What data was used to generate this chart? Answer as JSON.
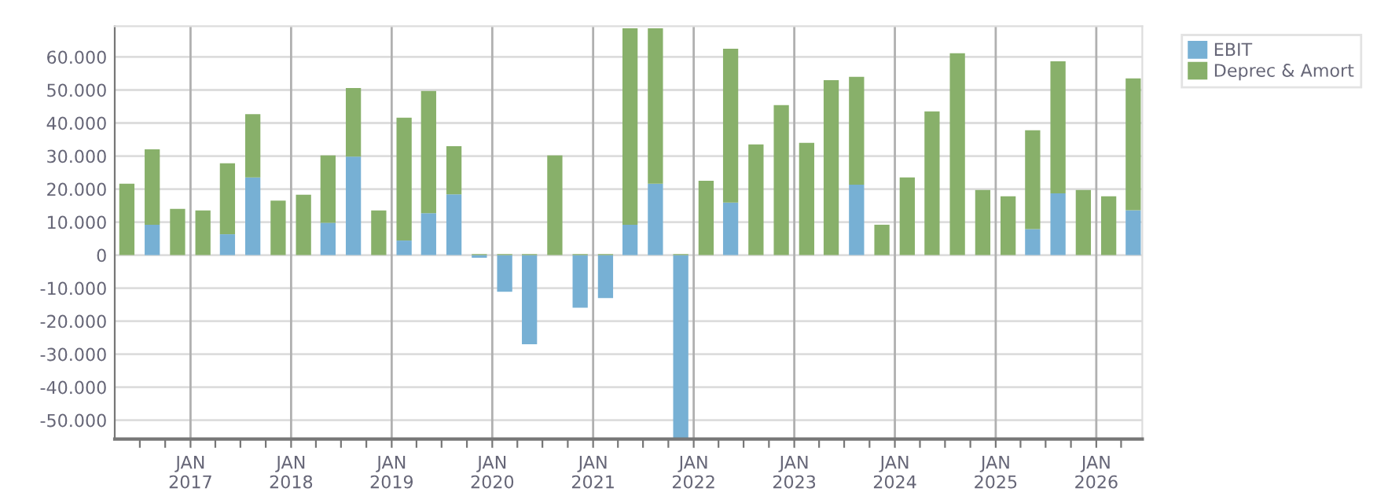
{
  "chart_data": {
    "type": "bar",
    "stacked": true,
    "x": [
      "2016-05-15",
      "2016-08-15",
      "2016-11-15",
      "2017-02-15",
      "2017-05-15",
      "2017-08-15",
      "2017-11-15",
      "2018-02-15",
      "2018-05-15",
      "2018-08-15",
      "2018-11-15",
      "2019-02-15",
      "2019-05-15",
      "2019-08-15",
      "2019-11-15",
      "2020-02-15",
      "2020-05-15",
      "2020-08-15",
      "2020-11-15",
      "2021-02-15",
      "2021-05-15",
      "2021-08-15",
      "2021-11-15",
      "2022-02-15",
      "2022-05-15",
      "2022-08-15",
      "2022-11-15",
      "2023-02-15",
      "2023-05-15",
      "2023-08-15",
      "2023-11-15",
      "2024-02-15",
      "2024-05-15",
      "2024-08-15",
      "2024-11-15",
      "2025-02-15",
      "2025-05-15",
      "2025-08-15",
      "2025-11-15",
      "2026-02-15",
      "2026-05-15"
    ],
    "series": [
      {
        "name": "EBIT",
        "color": "#77b0d4",
        "values": [
          0,
          9200,
          0,
          0,
          6300,
          23500,
          0,
          0,
          9800,
          29800,
          0,
          4400,
          12700,
          18400,
          -800,
          -11100,
          -27000,
          0,
          -15900,
          -13000,
          9200,
          21600,
          -55700,
          0,
          15900,
          0,
          0,
          0,
          0,
          21300,
          0,
          0,
          0,
          0,
          0,
          0,
          7900,
          18700,
          0,
          0,
          13600
        ]
      },
      {
        "name": "Deprec & Amort",
        "color": "#88b06a",
        "values": [
          21600,
          22800,
          14000,
          13500,
          21500,
          19200,
          16500,
          18300,
          20400,
          20800,
          13500,
          37200,
          37000,
          14600,
          300,
          300,
          300,
          30200,
          300,
          300,
          59500,
          47100,
          300,
          22500,
          46600,
          33500,
          45400,
          34000,
          53000,
          32700,
          9200,
          23500,
          43500,
          61100,
          19700,
          17800,
          29900,
          40000,
          19700,
          17800,
          39900
        ]
      }
    ],
    "xlim": [
      "2016-04-01",
      "2026-06-17"
    ],
    "xticks": [
      {
        "value": "2016-07-01",
        "label": null
      },
      {
        "value": "2016-10-01",
        "label": null
      },
      {
        "value": "2017-01-01",
        "label": "JAN\n2017"
      },
      {
        "value": "2017-04-01",
        "label": null
      },
      {
        "value": "2017-07-01",
        "label": null
      },
      {
        "value": "2017-10-01",
        "label": null
      },
      {
        "value": "2018-01-01",
        "label": "JAN\n2018"
      },
      {
        "value": "2018-04-01",
        "label": null
      },
      {
        "value": "2018-07-01",
        "label": null
      },
      {
        "value": "2018-10-01",
        "label": null
      },
      {
        "value": "2019-01-01",
        "label": "JAN\n2019"
      },
      {
        "value": "2019-04-01",
        "label": null
      },
      {
        "value": "2019-07-01",
        "label": null
      },
      {
        "value": "2019-10-01",
        "label": null
      },
      {
        "value": "2020-01-01",
        "label": "JAN\n2020"
      },
      {
        "value": "2020-04-01",
        "label": null
      },
      {
        "value": "2020-07-01",
        "label": null
      },
      {
        "value": "2020-10-01",
        "label": null
      },
      {
        "value": "2021-01-01",
        "label": "JAN\n2021"
      },
      {
        "value": "2021-04-01",
        "label": null
      },
      {
        "value": "2021-07-01",
        "label": null
      },
      {
        "value": "2021-10-01",
        "label": null
      },
      {
        "value": "2022-01-01",
        "label": "JAN\n2022"
      },
      {
        "value": "2022-04-01",
        "label": null
      },
      {
        "value": "2022-07-01",
        "label": null
      },
      {
        "value": "2022-10-01",
        "label": null
      },
      {
        "value": "2023-01-01",
        "label": "JAN\n2023"
      },
      {
        "value": "2023-04-01",
        "label": null
      },
      {
        "value": "2023-07-01",
        "label": null
      },
      {
        "value": "2023-10-01",
        "label": null
      },
      {
        "value": "2024-01-01",
        "label": "JAN\n2024"
      },
      {
        "value": "2024-04-01",
        "label": null
      },
      {
        "value": "2024-07-01",
        "label": null
      },
      {
        "value": "2024-10-01",
        "label": null
      },
      {
        "value": "2025-01-01",
        "label": "JAN\n2025"
      },
      {
        "value": "2025-04-01",
        "label": null
      },
      {
        "value": "2025-07-01",
        "label": null
      },
      {
        "value": "2025-10-01",
        "label": null
      },
      {
        "value": "2026-01-01",
        "label": "JAN\n2026"
      },
      {
        "value": "2026-04-01",
        "label": null
      }
    ],
    "ylim": [
      -55700,
      69300
    ],
    "yticks": [
      {
        "value": -50000,
        "label": "-50.000"
      },
      {
        "value": -40000,
        "label": "-40.000"
      },
      {
        "value": -30000,
        "label": "-30.000"
      },
      {
        "value": -20000,
        "label": "-20.000"
      },
      {
        "value": -10000,
        "label": "-10.000"
      },
      0,
      {
        "value": 10000,
        "label": "10.000"
      },
      {
        "value": 20000,
        "label": "20.000"
      },
      {
        "value": 30000,
        "label": "30.000"
      },
      {
        "value": 40000,
        "label": "40.000"
      },
      {
        "value": 50000,
        "label": "50.000"
      },
      {
        "value": 60000,
        "label": "60.000"
      }
    ],
    "grid": true,
    "legend": "top right"
  }
}
